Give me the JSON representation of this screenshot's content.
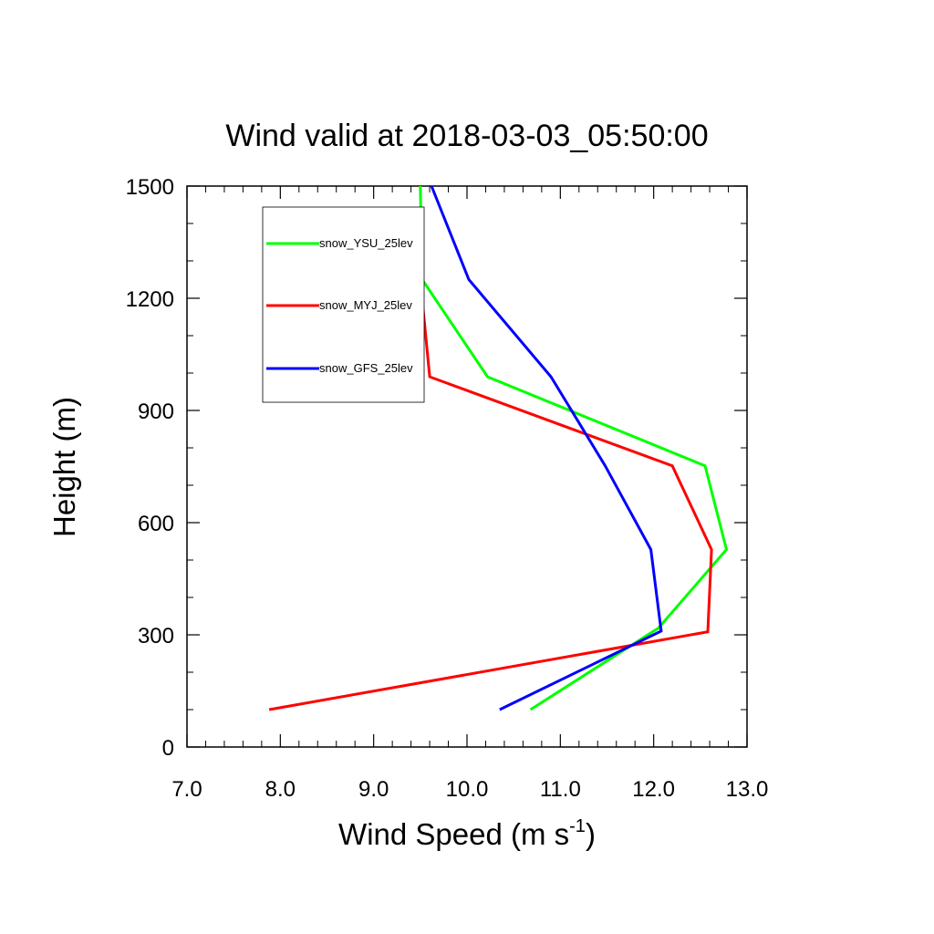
{
  "chart_data": {
    "type": "line",
    "title": "Wind valid at 2018-03-03_05:50:00",
    "xlabel": "Wind Speed (m s",
    "xlabel_superscript": "-1",
    "xlabel_suffix": ")",
    "ylabel": "Height (m)",
    "xlim": [
      7.0,
      13.0
    ],
    "ylim": [
      0,
      1500
    ],
    "x_ticks": [
      7.0,
      8.0,
      9.0,
      10.0,
      11.0,
      12.0,
      13.0
    ],
    "x_tick_labels": [
      "7.0",
      "8.0",
      "9.0",
      "10.0",
      "11.0",
      "12.0",
      "13.0"
    ],
    "y_ticks": [
      0,
      300,
      600,
      900,
      1200,
      1500
    ],
    "y_tick_labels": [
      "0",
      "300",
      "600",
      "900",
      "1200",
      "1500"
    ],
    "grid": false,
    "legend_position": "top-left",
    "series": [
      {
        "name": "snow_YSU_25lev",
        "color": "#00ff00",
        "points": [
          [
            10.68,
            100
          ],
          [
            12.05,
            318
          ],
          [
            12.78,
            528
          ],
          [
            12.55,
            752
          ],
          [
            10.22,
            990
          ],
          [
            9.52,
            1250
          ],
          [
            9.5,
            1500
          ]
        ]
      },
      {
        "name": "snow_MYJ_25lev",
        "color": "#ff0000",
        "points": [
          [
            7.88,
            100
          ],
          [
            12.58,
            308
          ],
          [
            12.62,
            528
          ],
          [
            12.2,
            752
          ],
          [
            9.6,
            990
          ],
          [
            9.5,
            1250
          ]
        ]
      },
      {
        "name": "snow_GFS_25lev",
        "color": "#0000ff",
        "points": [
          [
            10.35,
            100
          ],
          [
            12.08,
            310
          ],
          [
            11.97,
            528
          ],
          [
            11.48,
            752
          ],
          [
            10.9,
            990
          ],
          [
            10.02,
            1250
          ],
          [
            9.62,
            1500
          ]
        ]
      }
    ]
  }
}
